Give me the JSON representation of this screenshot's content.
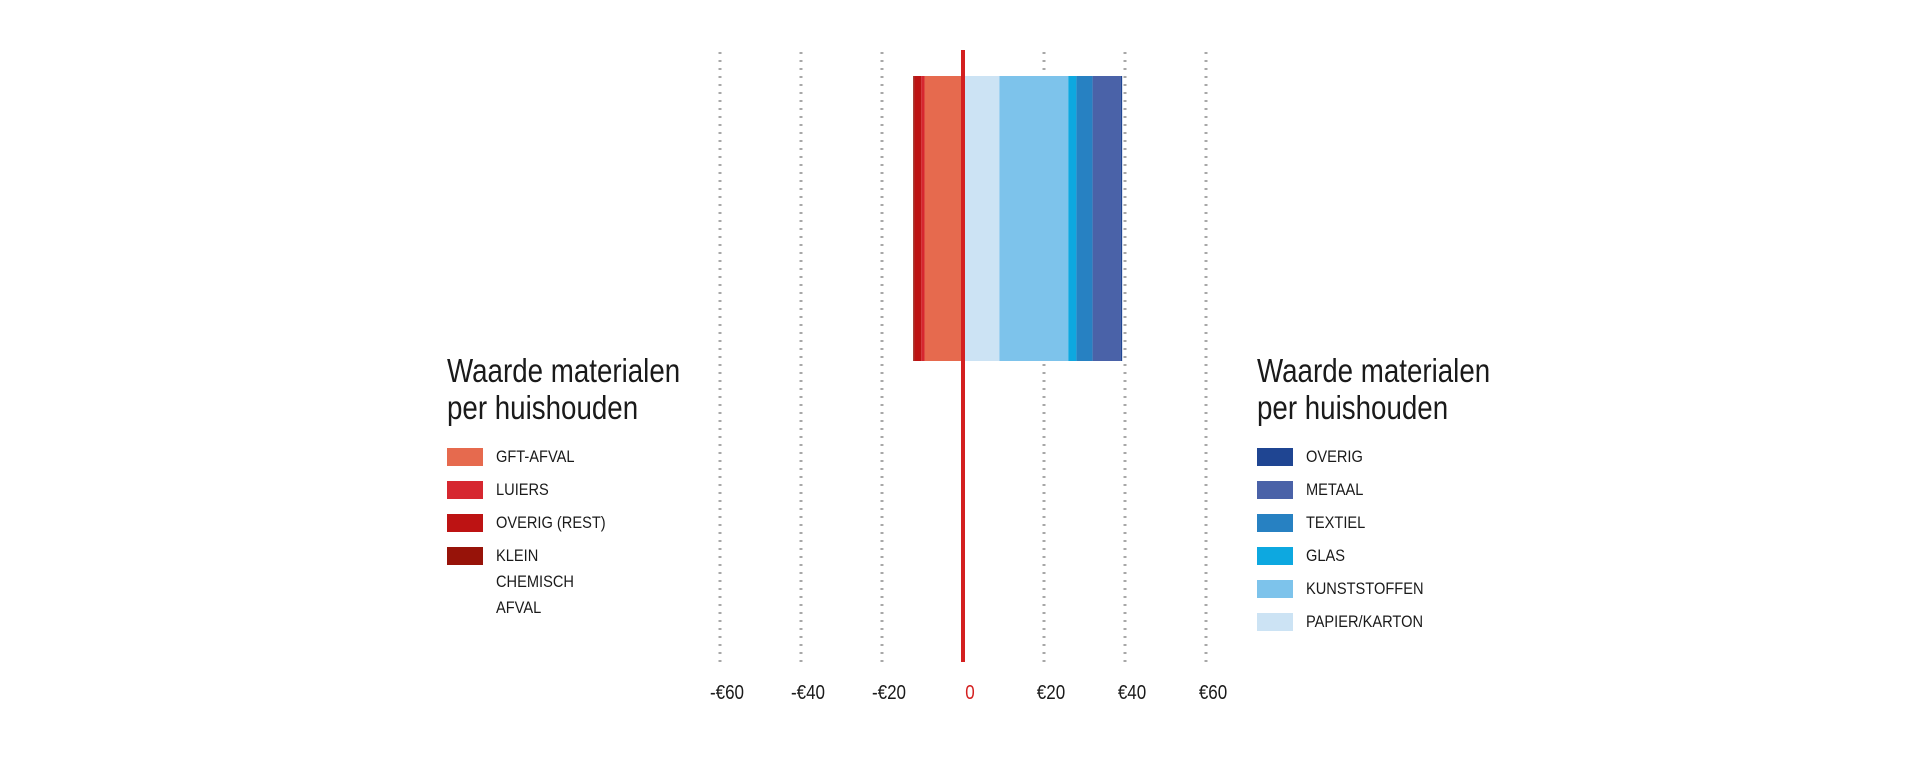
{
  "chart_data": {
    "type": "bar",
    "orientation": "horizontal-stacked-diverging",
    "xlim": [
      -60,
      60
    ],
    "x_ticks": [
      {
        "value": -60,
        "label": "-€60"
      },
      {
        "value": -40,
        "label": "-€40"
      },
      {
        "value": -20,
        "label": "-€20"
      },
      {
        "value": 0,
        "label": "0"
      },
      {
        "value": 20,
        "label": "€20"
      },
      {
        "value": 40,
        "label": "€40"
      },
      {
        "value": 60,
        "label": "€60"
      }
    ],
    "grid": "vertical dotted",
    "negative_series": [
      {
        "name": "GFT-AFVAL",
        "value": -9.5,
        "color": "#e66a4e"
      },
      {
        "name": "LUIERS",
        "value": -0.8,
        "color": "#d62730"
      },
      {
        "name": "OVERIG (REST)",
        "value": -1.7,
        "color": "#bd1313"
      },
      {
        "name": "KLEIN CHEMISCH AFVAL",
        "value": -0.3,
        "color": "#971309"
      }
    ],
    "positive_series": [
      {
        "name": "PAPIER/KARTON",
        "value": 9,
        "color": "#cce3f4"
      },
      {
        "name": "KUNSTSTOFFEN",
        "value": 17,
        "color": "#7dc3eb"
      },
      {
        "name": "GLAS",
        "value": 2,
        "color": "#0da8e0"
      },
      {
        "name": "TEXTIEL",
        "value": 4,
        "color": "#2781c2"
      },
      {
        "name": "METAAL",
        "value": 7,
        "color": "#4a62a8"
      },
      {
        "name": "OVERIG",
        "value": 0.3,
        "color": "#1f4592"
      }
    ],
    "zero_line_color": "#d42020"
  },
  "legend_left": {
    "title_line1": "Waarde materialen",
    "title_line2": "per huishouden",
    "items": [
      {
        "label": "GFT-AFVAL",
        "color": "#e66a4e"
      },
      {
        "label": "LUIERS",
        "color": "#d62730"
      },
      {
        "label": "OVERIG (REST)",
        "color": "#bd1313"
      },
      {
        "label": "KLEIN CHEMISCH AFVAL",
        "color": "#971309"
      }
    ]
  },
  "legend_right": {
    "title_line1": "Waarde materialen",
    "title_line2": "per huishouden",
    "items": [
      {
        "label": "OVERIG",
        "color": "#1f4592"
      },
      {
        "label": "METAAL",
        "color": "#4a62a8"
      },
      {
        "label": "TEXTIEL",
        "color": "#2781c2"
      },
      {
        "label": "GLAS",
        "color": "#0da8e0"
      },
      {
        "label": "KUNSTSTOFFEN",
        "color": "#7dc3eb"
      },
      {
        "label": "PAPIER/KARTON",
        "color": "#cce3f4"
      }
    ]
  }
}
